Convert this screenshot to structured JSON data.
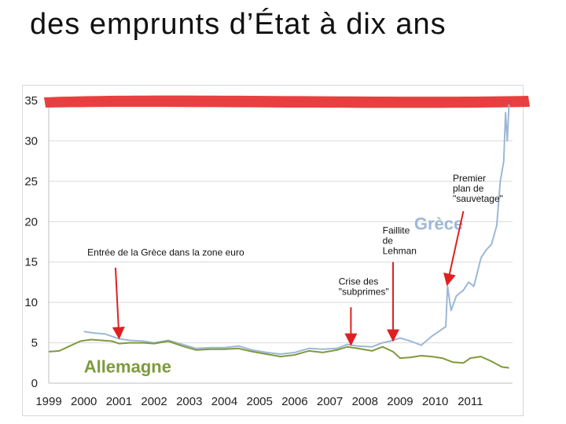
{
  "slide": {
    "title": "des emprunts d’État à dix ans"
  },
  "colors": {
    "greece": "#9db8d6",
    "germany": "#7f9a3c",
    "arrow": "#e02020",
    "highlight": "#e53030",
    "grid": "#d9d9d9"
  },
  "chart_data": {
    "type": "line",
    "ylim": [
      0,
      35
    ],
    "yticks": [
      0,
      5,
      10,
      15,
      20,
      25,
      30,
      35
    ],
    "xlim": [
      1999,
      2012.2
    ],
    "xticks": [
      "1999",
      "2000",
      "2001",
      "2002",
      "2003",
      "2004",
      "2005",
      "2006",
      "2007",
      "2008",
      "2009",
      "2010",
      "2011"
    ],
    "grid": "horizontal",
    "series": [
      {
        "name": "Grèce",
        "color": "#9db8d6",
        "points": [
          [
            2000.0,
            6.4
          ],
          [
            2000.3,
            6.2
          ],
          [
            2000.6,
            6.1
          ],
          [
            2001.0,
            5.5
          ],
          [
            2001.3,
            5.3
          ],
          [
            2001.7,
            5.2
          ],
          [
            2002.0,
            5.0
          ],
          [
            2002.4,
            5.3
          ],
          [
            2002.8,
            4.8
          ],
          [
            2003.2,
            4.3
          ],
          [
            2003.6,
            4.4
          ],
          [
            2004.0,
            4.4
          ],
          [
            2004.4,
            4.6
          ],
          [
            2004.8,
            4.1
          ],
          [
            2005.2,
            3.8
          ],
          [
            2005.6,
            3.6
          ],
          [
            2006.0,
            3.8
          ],
          [
            2006.4,
            4.3
          ],
          [
            2006.8,
            4.2
          ],
          [
            2007.2,
            4.3
          ],
          [
            2007.5,
            4.8
          ],
          [
            2007.8,
            4.6
          ],
          [
            2008.2,
            4.5
          ],
          [
            2008.5,
            5.0
          ],
          [
            2008.8,
            5.3
          ],
          [
            2009.0,
            5.6
          ],
          [
            2009.3,
            5.2
          ],
          [
            2009.6,
            4.7
          ],
          [
            2009.9,
            5.8
          ],
          [
            2010.1,
            6.4
          ],
          [
            2010.3,
            7.0
          ],
          [
            2010.35,
            12.0
          ],
          [
            2010.45,
            9.0
          ],
          [
            2010.6,
            10.8
          ],
          [
            2010.8,
            11.5
          ],
          [
            2010.95,
            12.5
          ],
          [
            2011.1,
            12.0
          ],
          [
            2011.3,
            15.5
          ],
          [
            2011.45,
            16.5
          ],
          [
            2011.6,
            17.2
          ],
          [
            2011.75,
            19.5
          ],
          [
            2011.85,
            25.0
          ],
          [
            2011.95,
            27.5
          ],
          [
            2012.0,
            33.5
          ],
          [
            2012.05,
            30.0
          ],
          [
            2012.1,
            34.5
          ]
        ]
      },
      {
        "name": "Allemagne",
        "color": "#7f9a3c",
        "points": [
          [
            1999.0,
            3.9
          ],
          [
            1999.3,
            4.0
          ],
          [
            1999.6,
            4.6
          ],
          [
            1999.9,
            5.2
          ],
          [
            2000.2,
            5.4
          ],
          [
            2000.5,
            5.3
          ],
          [
            2000.8,
            5.2
          ],
          [
            2001.0,
            4.9
          ],
          [
            2001.3,
            5.0
          ],
          [
            2001.7,
            5.0
          ],
          [
            2002.0,
            4.9
          ],
          [
            2002.4,
            5.2
          ],
          [
            2002.8,
            4.6
          ],
          [
            2003.2,
            4.1
          ],
          [
            2003.6,
            4.2
          ],
          [
            2004.0,
            4.2
          ],
          [
            2004.4,
            4.3
          ],
          [
            2004.8,
            3.9
          ],
          [
            2005.2,
            3.6
          ],
          [
            2005.6,
            3.3
          ],
          [
            2006.0,
            3.5
          ],
          [
            2006.4,
            4.0
          ],
          [
            2006.8,
            3.8
          ],
          [
            2007.2,
            4.1
          ],
          [
            2007.5,
            4.5
          ],
          [
            2007.8,
            4.3
          ],
          [
            2008.2,
            4.0
          ],
          [
            2008.5,
            4.5
          ],
          [
            2008.8,
            3.9
          ],
          [
            2009.0,
            3.1
          ],
          [
            2009.3,
            3.2
          ],
          [
            2009.6,
            3.4
          ],
          [
            2009.9,
            3.3
          ],
          [
            2010.2,
            3.1
          ],
          [
            2010.5,
            2.6
          ],
          [
            2010.8,
            2.5
          ],
          [
            2011.0,
            3.1
          ],
          [
            2011.3,
            3.3
          ],
          [
            2011.6,
            2.7
          ],
          [
            2011.9,
            2.0
          ],
          [
            2012.1,
            1.9
          ]
        ]
      }
    ],
    "annotations": [
      {
        "id": "euro",
        "lines": [
          "Entrée de la Grèce dans la zone euro"
        ],
        "arrow_to": [
          2001.0,
          5.6
        ]
      },
      {
        "id": "subprimes",
        "lines": [
          "Crise des",
          "\"subprimes\""
        ],
        "arrow_to": [
          2007.6,
          4.8
        ]
      },
      {
        "id": "lehman",
        "lines": [
          "Faillite",
          "de",
          "Lehman"
        ],
        "arrow_to": [
          2008.8,
          5.3
        ]
      },
      {
        "id": "sauvetage",
        "lines": [
          "Premier",
          "plan de",
          "\"sauvetage\""
        ],
        "arrow_to": [
          2010.35,
          12.2
        ]
      }
    ],
    "series_labels": [
      {
        "text": "Grèce",
        "color": "#9db8d6"
      },
      {
        "text": "Allemagne",
        "color": "#7f9a3c"
      }
    ]
  }
}
